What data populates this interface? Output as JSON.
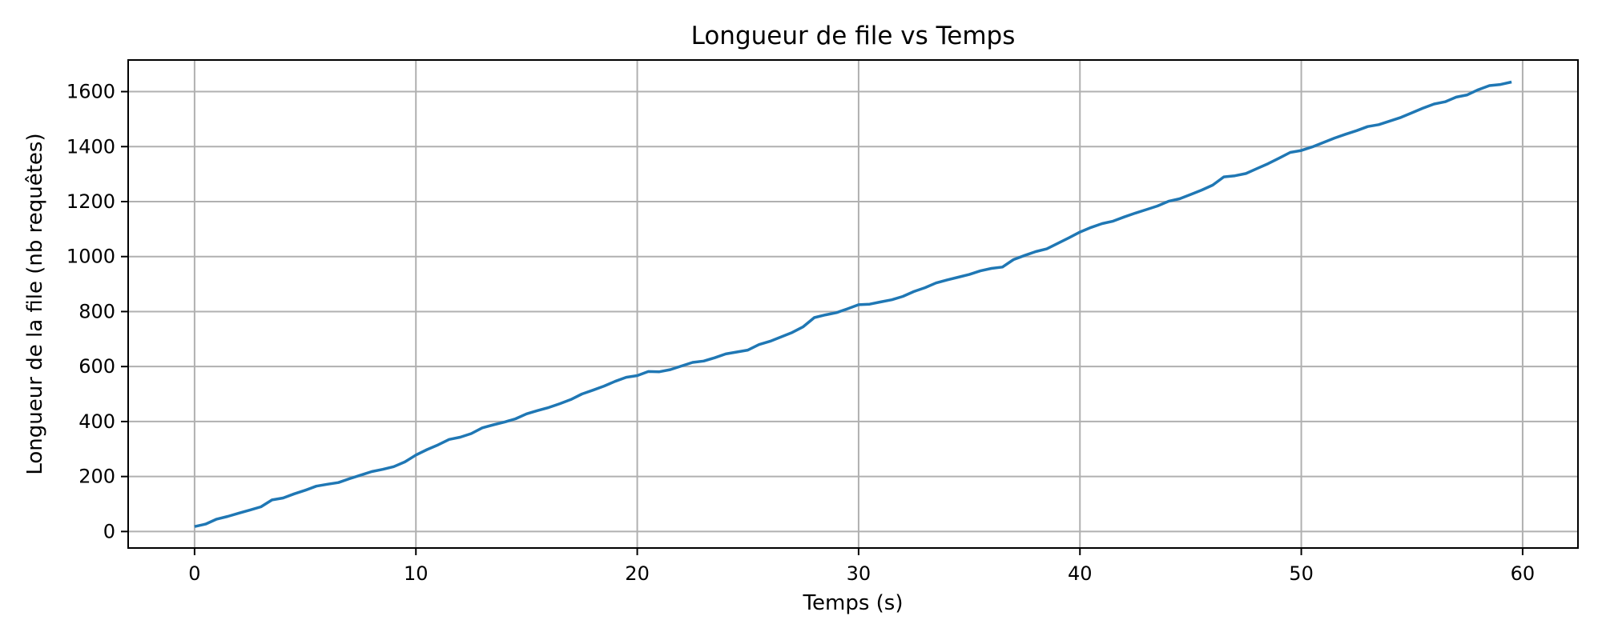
{
  "chart_data": {
    "type": "line",
    "title": "Longueur de file vs Temps",
    "xlabel": "Temps (s)",
    "ylabel": "Longueur de la file (nb requêtes)",
    "xlim": [
      -3,
      62.5
    ],
    "ylim": [
      -60,
      1715
    ],
    "xticks": [
      0,
      10,
      20,
      30,
      40,
      50,
      60
    ],
    "yticks": [
      0,
      200,
      400,
      600,
      800,
      1000,
      1200,
      1400,
      1600
    ],
    "grid": true,
    "series": [
      {
        "color": "#1f77b4",
        "x": [
          0,
          0.5,
          1,
          1.5,
          2,
          2.5,
          3,
          3.5,
          4,
          4.5,
          5,
          5.5,
          6,
          6.5,
          7,
          7.5,
          8,
          8.5,
          9,
          9.5,
          10,
          10.5,
          11,
          11.5,
          12,
          12.5,
          13,
          13.5,
          14,
          14.5,
          15,
          15.5,
          16,
          16.5,
          17,
          17.5,
          18,
          18.5,
          19,
          19.5,
          20,
          20.5,
          21,
          21.5,
          22,
          22.5,
          23,
          23.5,
          24,
          24.5,
          25,
          25.5,
          26,
          26.5,
          27,
          27.5,
          28,
          28.5,
          29,
          29.5,
          30,
          30.5,
          31,
          31.5,
          32,
          32.5,
          33,
          33.5,
          34,
          34.5,
          35,
          35.5,
          36,
          36.5,
          37,
          37.5,
          38,
          38.5,
          39,
          39.5,
          40,
          40.5,
          41,
          41.5,
          42,
          42.5,
          43,
          43.5,
          44,
          44.5,
          45,
          45.5,
          46,
          46.5,
          47,
          47.5,
          48,
          48.5,
          49,
          49.5,
          50,
          50.5,
          51,
          51.5,
          52,
          52.5,
          53,
          53.5,
          54,
          54.5,
          55,
          55.5,
          56,
          56.5,
          57,
          57.5,
          58,
          58.5,
          59,
          59.5
        ],
        "y": [
          18,
          27,
          45,
          55,
          67,
          78,
          90,
          115,
          122,
          137,
          150,
          165,
          172,
          178,
          192,
          205,
          218,
          226,
          236,
          253,
          278,
          298,
          315,
          335,
          343,
          356,
          377,
          388,
          398,
          410,
          428,
          440,
          451,
          465,
          480,
          500,
          514,
          529,
          546,
          561,
          567,
          582,
          581,
          589,
          602,
          615,
          620,
          632,
          646,
          653,
          660,
          680,
          692,
          708,
          724,
          745,
          778,
          788,
          796,
          810,
          825,
          827,
          835,
          843,
          855,
          873,
          887,
          904,
          915,
          925,
          935,
          948,
          957,
          962,
          989,
          1004,
          1018,
          1028,
          1048,
          1068,
          1089,
          1106,
          1120,
          1129,
          1144,
          1158,
          1171,
          1184,
          1201,
          1210,
          1226,
          1242,
          1260,
          1290,
          1294,
          1302,
          1320,
          1338,
          1358,
          1379,
          1386,
          1399,
          1415,
          1431,
          1445,
          1458,
          1473,
          1480,
          1493,
          1506,
          1523,
          1540,
          1555,
          1563,
          1580,
          1588,
          1607,
          1622,
          1626,
          1635
        ]
      }
    ]
  }
}
